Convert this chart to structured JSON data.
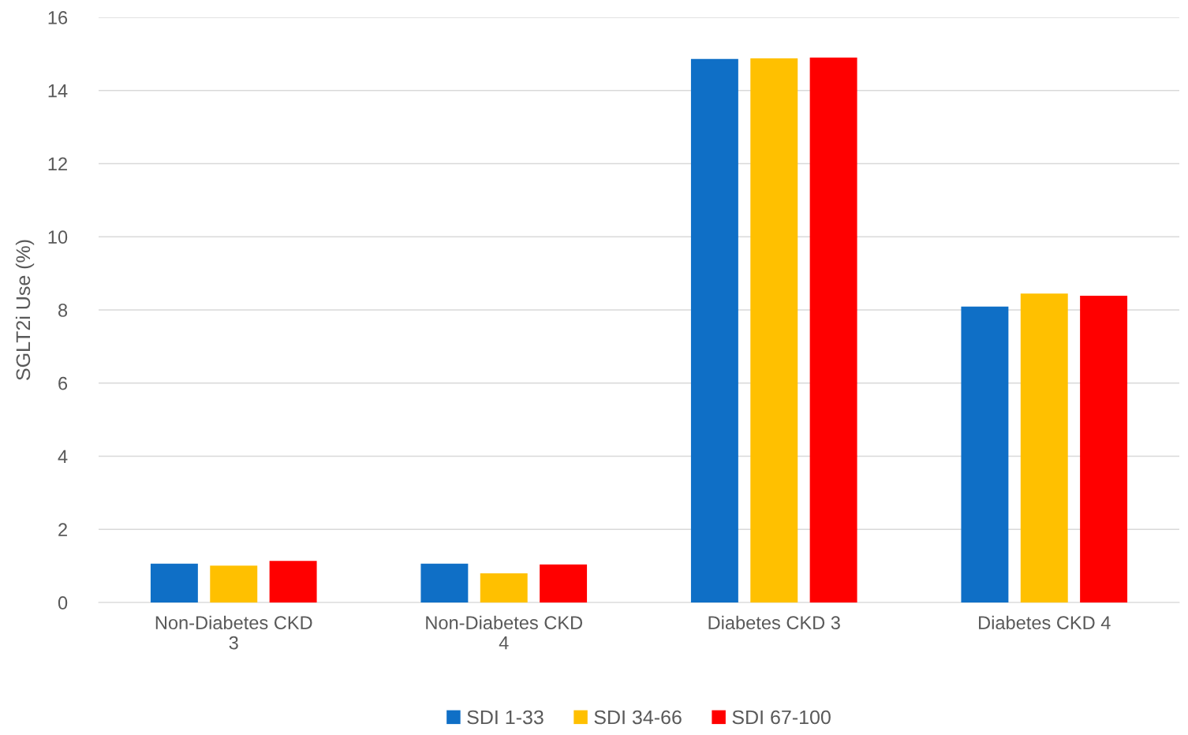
{
  "chart_data": {
    "type": "bar",
    "ylabel": "SGLT2i Use (%)",
    "categories": [
      "Non-Diabetes CKD 3",
      "Non-Diabetes CKD 4",
      "Diabetes CKD 3",
      "Diabetes CKD 4"
    ],
    "series": [
      {
        "name": "SDI 1-33",
        "color": "#0f6fc6",
        "values": [
          1.06,
          1.06,
          14.86,
          8.09
        ]
      },
      {
        "name": "SDI 34-66",
        "color": "#ffc000",
        "values": [
          1.01,
          0.8,
          14.88,
          8.45
        ]
      },
      {
        "name": "SDI 67-100",
        "color": "#ff0000",
        "values": [
          1.14,
          1.04,
          14.9,
          8.39
        ]
      }
    ],
    "ylim": [
      0,
      16
    ],
    "yticks": [
      0,
      2,
      4,
      6,
      8,
      10,
      12,
      14,
      16
    ],
    "grid": "y",
    "legend": "bottom"
  }
}
